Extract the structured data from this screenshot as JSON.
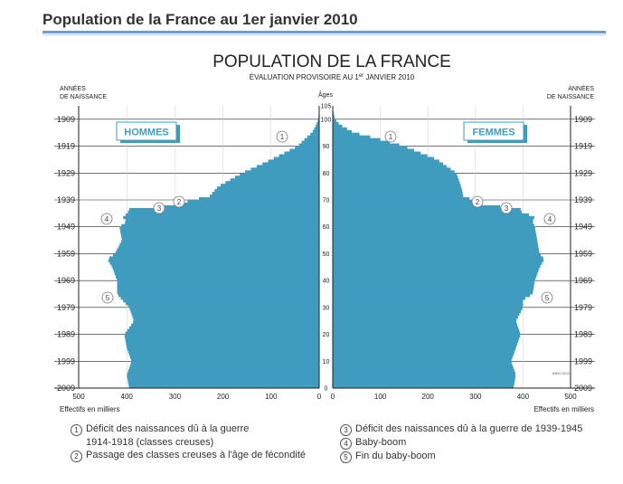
{
  "page": {
    "title": "Population de la France au 1er janvier 2010"
  },
  "chart_data": {
    "type": "bar",
    "title": "POPULATION DE LA FRANCE",
    "subtitle_pre": "ÉVALUATION PROVISOIRE AU 1",
    "subtitle_sup": "er",
    "subtitle_post": " JANVIER 2010",
    "left_axis_label_1": "ANNÉES",
    "left_axis_label_2": "DE NAISSANCE",
    "right_axis_label_1": "ANNÉES",
    "right_axis_label_2": "DE NAISSANCE",
    "age_axis_label": "Âges",
    "xlabel_left": "Effectifs en milliers",
    "xlabel_right": "Effectifs en milliers",
    "men_label": "HOMMES",
    "women_label": "FEMMES",
    "source_stamp": "INED 02/10",
    "birth_year_ticks": [
      "1909",
      "1919",
      "1929",
      "1939",
      "1949",
      "1959",
      "1969",
      "1979",
      "1989",
      "1999",
      "2009"
    ],
    "age_ticks": [
      "105",
      "100",
      "90",
      "80",
      "70",
      "60",
      "50",
      "40",
      "30",
      "20",
      "10",
      "0"
    ],
    "men_x_ticks": [
      "500",
      "400",
      "300",
      "200",
      "100",
      "0"
    ],
    "women_x_ticks": [
      "0",
      "100",
      "200",
      "300",
      "400",
      "500"
    ],
    "xlim": [
      0,
      500
    ],
    "age_range": [
      0,
      105
    ],
    "series": [
      {
        "name": "HOMMES",
        "color": "#3f9cbf",
        "ages": [
          0,
          5,
          10,
          15,
          20,
          25,
          30,
          33,
          35,
          40,
          45,
          48,
          50,
          55,
          60,
          62,
          64,
          65,
          66,
          67,
          68,
          70,
          71,
          75,
          80,
          85,
          90,
          93,
          95,
          98,
          100,
          103
        ],
        "values": [
          395,
          400,
          390,
          400,
          405,
          385,
          395,
          410,
          420,
          420,
          430,
          440,
          425,
          410,
          415,
          400,
          410,
          395,
          400,
          390,
          285,
          270,
          230,
          210,
          160,
          100,
          45,
          28,
          15,
          6,
          2,
          0.5
        ]
      },
      {
        "name": "FEMMES",
        "color": "#3f9cbf",
        "ages": [
          0,
          5,
          10,
          15,
          20,
          25,
          30,
          33,
          35,
          40,
          45,
          48,
          50,
          55,
          60,
          62,
          64,
          65,
          66,
          67,
          68,
          70,
          71,
          75,
          80,
          85,
          90,
          93,
          95,
          98,
          100,
          103
        ],
        "values": [
          380,
          385,
          375,
          385,
          395,
          385,
          400,
          400,
          420,
          425,
          435,
          445,
          435,
          430,
          425,
          420,
          425,
          400,
          395,
          395,
          310,
          300,
          275,
          270,
          260,
          220,
          150,
          90,
          45,
          15,
          5,
          1
        ]
      }
    ],
    "annotations": [
      {
        "id": "1",
        "text": "Déficit des naissances dû à la guerre",
        "text2": "1914-1918 (classes creuses)"
      },
      {
        "id": "2",
        "text": "Passage des classes creuses à l'âge de fécondité"
      },
      {
        "id": "3",
        "text": "Déficit des naissances dû à la guerre de 1939-1945"
      },
      {
        "id": "4",
        "text": "Baby-boom"
      },
      {
        "id": "5",
        "text": "Fin du baby-boom"
      }
    ],
    "grid": true
  }
}
